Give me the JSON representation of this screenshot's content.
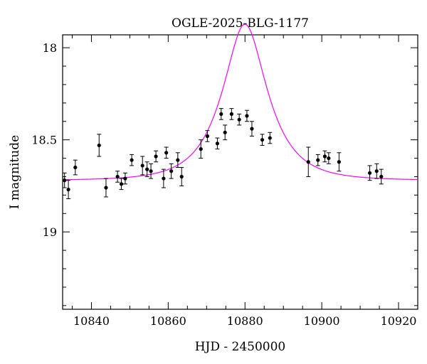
{
  "chart_data": {
    "type": "scatter",
    "title": "OGLE-2025-BLG-1177",
    "xlabel": "HJD - 2450000",
    "ylabel": "I magnitude",
    "xlim": [
      10832.5,
      10925
    ],
    "ylim": [
      19.42,
      17.93
    ],
    "y_inverted": true,
    "x_ticks": [
      10840,
      10860,
      10880,
      10900,
      10920
    ],
    "x_tick_labels": [
      "10840",
      "10860",
      "10880",
      "10900",
      "10920"
    ],
    "y_ticks": [
      18,
      18.5,
      19
    ],
    "y_tick_labels": [
      "18",
      "18.5",
      "19"
    ],
    "grid": false,
    "legend": "none",
    "point_color": "#000000",
    "model_color": "#ff00ff",
    "series": [
      {
        "type": "points-with-errorbars",
        "x": [
          10833.0,
          10834.0,
          10835.8,
          10842.0,
          10843.8,
          10846.8,
          10847.8,
          10848.8,
          10850.5,
          10853.3,
          10854.5,
          10855.5,
          10856.8,
          10858.8,
          10859.5,
          10860.8,
          10862.5,
          10863.5,
          10868.5,
          10870.2,
          10872.8,
          10873.8,
          10874.8,
          10876.5,
          10878.5,
          10880.5,
          10881.8,
          10884.5,
          10886.5,
          10896.5,
          10899.0,
          10900.8,
          10901.8,
          10904.5,
          10912.5,
          10914.3,
          10915.5
        ],
        "y": [
          18.72,
          18.77,
          18.65,
          18.53,
          18.76,
          18.7,
          18.74,
          18.71,
          18.61,
          18.64,
          18.66,
          18.67,
          18.59,
          18.71,
          18.57,
          18.67,
          18.61,
          18.7,
          18.55,
          18.48,
          18.52,
          18.36,
          18.46,
          18.36,
          18.39,
          18.37,
          18.44,
          18.5,
          18.49,
          18.62,
          18.61,
          18.59,
          18.6,
          18.62,
          18.68,
          18.67,
          18.7
        ],
        "err": [
          0.04,
          0.05,
          0.04,
          0.06,
          0.05,
          0.03,
          0.03,
          0.03,
          0.03,
          0.05,
          0.04,
          0.04,
          0.03,
          0.05,
          0.03,
          0.04,
          0.04,
          0.05,
          0.05,
          0.03,
          0.03,
          0.03,
          0.04,
          0.03,
          0.03,
          0.03,
          0.04,
          0.03,
          0.03,
          0.08,
          0.03,
          0.03,
          0.03,
          0.05,
          0.04,
          0.04,
          0.04
        ]
      },
      {
        "type": "model-curve",
        "model": "paczynski",
        "t0": 10880.0,
        "tE": 10.0,
        "u0": 0.5,
        "I_base": 18.72,
        "t_range": [
          10832.5,
          10925
        ]
      }
    ]
  }
}
